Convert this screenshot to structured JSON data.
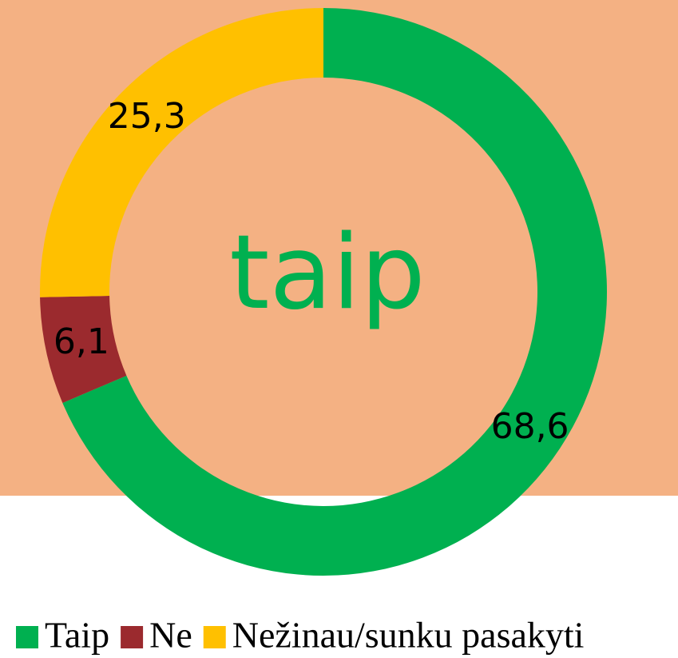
{
  "chart_data": {
    "type": "donut",
    "annotation": "taip",
    "categories": [
      "Taip",
      "Ne",
      "Nežinau/sunku pasakyti"
    ],
    "values": [
      68.6,
      6.1,
      25.3
    ],
    "value_labels": [
      "68,6",
      "6,1",
      "25,3"
    ],
    "colors": [
      "#00b050",
      "#9b2a2e",
      "#ffc000"
    ],
    "legend": "bottom"
  }
}
